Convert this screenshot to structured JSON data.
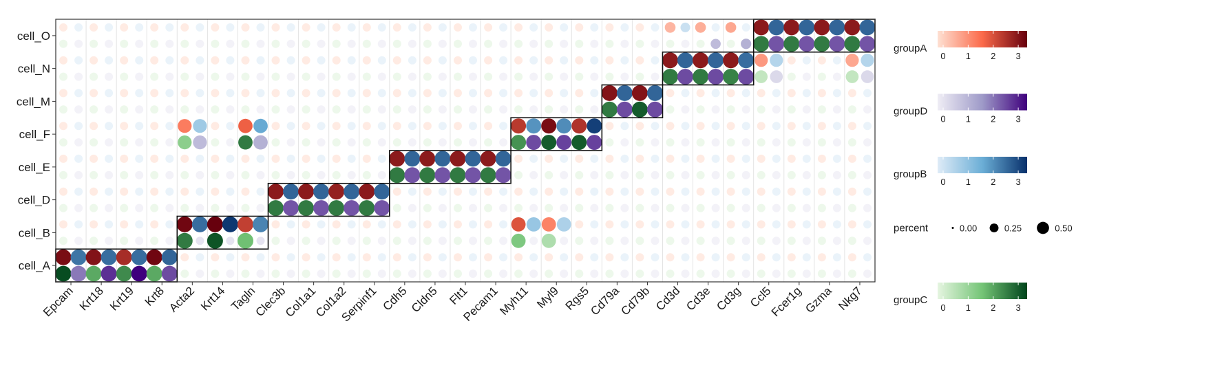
{
  "chart_data": {
    "type": "dotplot",
    "title": "",
    "xlabel": "",
    "ylabel": "",
    "genes": [
      "Epcam",
      "Krt18",
      "Krt19",
      "Krt8",
      "Acta2",
      "Krt14",
      "Tagln",
      "Clec3b",
      "Col1a1",
      "Col1a2",
      "Serpinf1",
      "Cdh5",
      "Cldn5",
      "Flt1",
      "Pecam1",
      "Myh11",
      "Myl9",
      "Rgs5",
      "Cd79a",
      "Cd79b",
      "Cd3d",
      "Cd3e",
      "Cd3g",
      "Ccl5",
      "Fcer1g",
      "Gzma",
      "Nkg7"
    ],
    "cell_types": [
      "cell_A",
      "cell_B",
      "cell_D",
      "cell_E",
      "cell_F",
      "cell_M",
      "cell_N",
      "cell_O"
    ],
    "groups": [
      "groupA",
      "groupB",
      "groupC",
      "groupD"
    ],
    "gradients": {
      "groupA": [
        "#fee0d2",
        "#fb6a4a",
        "#67000d"
      ],
      "groupB": [
        "#deebf7",
        "#6baed6",
        "#08306b"
      ],
      "groupC": [
        "#e5f5e0",
        "#74c476",
        "#00441b"
      ],
      "groupD": [
        "#efedf5",
        "#9e9ac8",
        "#3f007d"
      ]
    },
    "color_range": [
      0,
      3.3
    ],
    "percent_range": [
      0,
      0.5
    ],
    "background": {
      "expr": 0.2,
      "pct": 0.15
    },
    "highlight_blocks": [
      {
        "cell": "cell_A",
        "genes": [
          "Epcam",
          "Krt18",
          "Krt19",
          "Krt8"
        ],
        "pct": 0.55,
        "groupA": [
          3.1,
          3.0,
          2.6,
          3.2
        ],
        "groupB": [
          2.4,
          2.5,
          2.5,
          2.6
        ],
        "groupC": [
          3.2,
          2.0,
          2.4,
          2.0
        ],
        "groupD": [
          2.0,
          2.8,
          3.3,
          2.5
        ]
      },
      {
        "cell": "cell_B",
        "genes": [
          "Acta2",
          "Krt14",
          "Tagln"
        ],
        "pct": 0.55,
        "groupA": [
          3.2,
          3.3,
          2.3
        ],
        "groupB": [
          2.5,
          3.2,
          2.2
        ],
        "groupC": [
          2.6,
          3.1,
          1.7
        ],
        "groupD": [
          0,
          0,
          0
        ]
      },
      {
        "cell": "cell_D",
        "genes": [
          "Clec3b",
          "Col1a1",
          "Col1a2",
          "Serpinf1"
        ],
        "pct": 0.55,
        "groupA": [
          2.9,
          2.9,
          2.8,
          2.9
        ],
        "groupB": [
          2.6,
          2.6,
          2.6,
          2.6
        ],
        "groupC": [
          2.6,
          2.6,
          2.6,
          2.6
        ],
        "groupD": [
          2.4,
          2.4,
          2.4,
          2.4
        ]
      },
      {
        "cell": "cell_E",
        "genes": [
          "Cdh5",
          "Cldn5",
          "Flt1",
          "Pecam1"
        ],
        "pct": 0.55,
        "groupA": [
          2.9,
          2.9,
          2.9,
          2.9
        ],
        "groupB": [
          2.6,
          2.6,
          2.6,
          2.6
        ],
        "groupC": [
          2.6,
          2.6,
          2.6,
          2.6
        ],
        "groupD": [
          2.4,
          2.4,
          2.4,
          2.4
        ]
      },
      {
        "cell": "cell_F",
        "genes": [
          "Myh11",
          "Myl9",
          "Rgs5"
        ],
        "pct": 0.5,
        "groupA": [
          2.4,
          3.1,
          2.5
        ],
        "groupB": [
          2.0,
          2.1,
          3.1
        ],
        "groupC": [
          2.3,
          3.0,
          3.0
        ],
        "groupD": [
          2.5,
          2.6,
          2.6
        ]
      },
      {
        "cell": "cell_M",
        "genes": [
          "Cd79a",
          "Cd79b"
        ],
        "pct": 0.55,
        "groupA": [
          3.0,
          3.0
        ],
        "groupB": [
          2.6,
          2.6
        ],
        "groupC": [
          2.6,
          3.0
        ],
        "groupD": [
          2.5,
          2.5
        ]
      },
      {
        "cell": "cell_N",
        "genes": [
          "Cd3d",
          "Cd3e",
          "Cd3g"
        ],
        "pct": 0.55,
        "groupA": [
          2.9,
          2.9,
          2.9
        ],
        "groupB": [
          2.6,
          2.6,
          2.5
        ],
        "groupC": [
          2.6,
          2.6,
          2.5
        ],
        "groupD": [
          2.5,
          2.5,
          2.5
        ]
      },
      {
        "cell": "cell_O",
        "genes": [
          "Ccl5",
          "Fcer1g",
          "Gzma",
          "Nkg7"
        ],
        "pct": 0.55,
        "groupA": [
          2.9,
          2.9,
          2.9,
          2.9
        ],
        "groupB": [
          2.6,
          2.6,
          2.6,
          2.6
        ],
        "groupC": [
          2.6,
          2.6,
          2.6,
          2.6
        ],
        "groupD": [
          2.4,
          2.4,
          2.4,
          2.4
        ]
      }
    ],
    "moderate_dots": [
      {
        "cell": "cell_F",
        "gene": "Acta2",
        "group": "groupA",
        "expr": 1.4,
        "pct": 0.42
      },
      {
        "cell": "cell_F",
        "gene": "Acta2",
        "group": "groupB",
        "expr": 0.9,
        "pct": 0.42
      },
      {
        "cell": "cell_F",
        "gene": "Acta2",
        "group": "groupC",
        "expr": 1.3,
        "pct": 0.42
      },
      {
        "cell": "cell_F",
        "gene": "Acta2",
        "group": "groupD",
        "expr": 1.0,
        "pct": 0.42
      },
      {
        "cell": "cell_F",
        "gene": "Tagln",
        "group": "groupA",
        "expr": 1.8,
        "pct": 0.45
      },
      {
        "cell": "cell_F",
        "gene": "Tagln",
        "group": "groupB",
        "expr": 1.7,
        "pct": 0.45
      },
      {
        "cell": "cell_F",
        "gene": "Tagln",
        "group": "groupC",
        "expr": 2.6,
        "pct": 0.45
      },
      {
        "cell": "cell_F",
        "gene": "Tagln",
        "group": "groupD",
        "expr": 1.2,
        "pct": 0.45
      },
      {
        "cell": "cell_B",
        "gene": "Myh11",
        "group": "groupA",
        "expr": 2.0,
        "pct": 0.45
      },
      {
        "cell": "cell_B",
        "gene": "Myh11",
        "group": "groupB",
        "expr": 1.0,
        "pct": 0.45
      },
      {
        "cell": "cell_B",
        "gene": "Myh11",
        "group": "groupC",
        "expr": 1.5,
        "pct": 0.45
      },
      {
        "cell": "cell_B",
        "gene": "Myl9",
        "group": "groupA",
        "expr": 1.3,
        "pct": 0.45
      },
      {
        "cell": "cell_B",
        "gene": "Myl9",
        "group": "groupB",
        "expr": 0.7,
        "pct": 0.45
      },
      {
        "cell": "cell_B",
        "gene": "Myl9",
        "group": "groupC",
        "expr": 0.8,
        "pct": 0.45
      },
      {
        "cell": "cell_N",
        "gene": "Ccl5",
        "group": "groupA",
        "expr": 1.0,
        "pct": 0.38
      },
      {
        "cell": "cell_N",
        "gene": "Ccl5",
        "group": "groupB",
        "expr": 0.6,
        "pct": 0.38
      },
      {
        "cell": "cell_N",
        "gene": "Ccl5",
        "group": "groupC",
        "expr": 0.5,
        "pct": 0.36
      },
      {
        "cell": "cell_N",
        "gene": "Ccl5",
        "group": "groupD",
        "expr": 0.4,
        "pct": 0.36
      },
      {
        "cell": "cell_N",
        "gene": "Nkg7",
        "group": "groupA",
        "expr": 0.8,
        "pct": 0.38
      },
      {
        "cell": "cell_N",
        "gene": "Nkg7",
        "group": "groupB",
        "expr": 0.6,
        "pct": 0.38
      },
      {
        "cell": "cell_N",
        "gene": "Nkg7",
        "group": "groupC",
        "expr": 0.5,
        "pct": 0.36
      },
      {
        "cell": "cell_N",
        "gene": "Nkg7",
        "group": "groupD",
        "expr": 0.4,
        "pct": 0.36
      },
      {
        "cell": "cell_O",
        "gene": "Cd3d",
        "group": "groupA",
        "expr": 0.6,
        "pct": 0.25
      },
      {
        "cell": "cell_O",
        "gene": "Cd3d",
        "group": "groupB",
        "expr": 0.3,
        "pct": 0.2
      },
      {
        "cell": "cell_O",
        "gene": "Cd3e",
        "group": "groupA",
        "expr": 0.7,
        "pct": 0.25
      },
      {
        "cell": "cell_O",
        "gene": "Cd3e",
        "group": "groupD",
        "expr": 1.0,
        "pct": 0.22
      },
      {
        "cell": "cell_O",
        "gene": "Cd3g",
        "group": "groupA",
        "expr": 0.8,
        "pct": 0.25
      },
      {
        "cell": "cell_O",
        "gene": "Cd3g",
        "group": "groupD",
        "expr": 1.2,
        "pct": 0.24
      }
    ],
    "legend": {
      "position": "right",
      "items": [
        {
          "type": "color",
          "name": "groupA",
          "group": "groupA",
          "ticks": [
            "0",
            "1",
            "2",
            "3"
          ]
        },
        {
          "type": "color",
          "name": "groupD",
          "group": "groupD",
          "ticks": [
            "0",
            "1",
            "2",
            "3"
          ]
        },
        {
          "type": "color",
          "name": "groupB",
          "group": "groupB",
          "ticks": [
            "0",
            "1",
            "2",
            "3"
          ]
        },
        {
          "type": "size",
          "name": "percent",
          "ticks": [
            "0.00",
            "0.25",
            "0.50"
          ],
          "values": [
            0,
            0.25,
            0.5
          ]
        },
        {
          "type": "color",
          "name": "groupC",
          "group": "groupC",
          "ticks": [
            "0",
            "1",
            "2",
            "3"
          ]
        }
      ]
    }
  }
}
